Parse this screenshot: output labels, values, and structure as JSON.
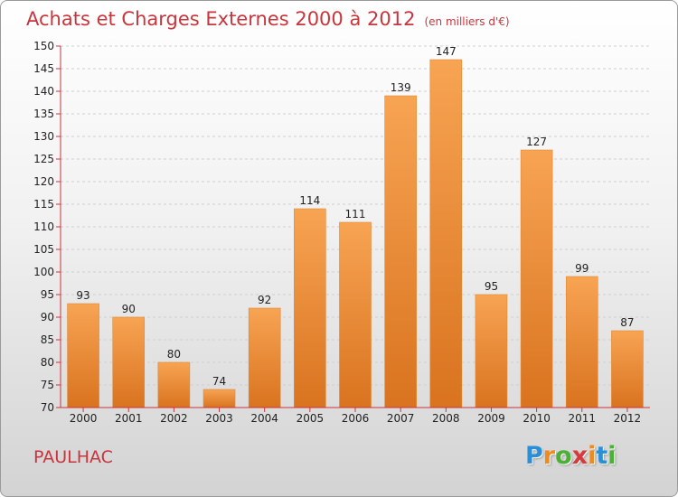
{
  "header": {
    "title": "Achats et Charges Externes 2000 à 2012",
    "unit": "(en milliers d'€)"
  },
  "footer": {
    "commune": "PAULHAC",
    "logo_letters": [
      "P",
      "r",
      "o",
      "x",
      "i",
      "t",
      "i"
    ],
    "logo_colors": [
      "#2a8fd6",
      "#f08a1e",
      "#4bb035",
      "#d63a3a",
      "#f08a1e",
      "#2a8fd6",
      "#4bb035"
    ]
  },
  "chart_data": {
    "type": "bar",
    "title": "Achats et Charges Externes 2000 à 2012",
    "subtitle": "(en milliers d'€)",
    "xlabel": "",
    "ylabel": "",
    "categories": [
      "2000",
      "2001",
      "2002",
      "2003",
      "2004",
      "2005",
      "2006",
      "2007",
      "2008",
      "2009",
      "2010",
      "2011",
      "2012"
    ],
    "values": [
      93,
      90,
      80,
      74,
      92,
      114,
      111,
      139,
      147,
      95,
      127,
      99,
      87
    ],
    "ylim": [
      70,
      150
    ],
    "yticks": [
      70,
      75,
      80,
      85,
      90,
      95,
      100,
      105,
      110,
      115,
      120,
      125,
      130,
      135,
      140,
      145,
      150
    ],
    "grid": true,
    "legend": "none",
    "bar_color_top": "#f7a453",
    "bar_color_bottom": "#d9731f",
    "axis_color": "#c9353c"
  }
}
